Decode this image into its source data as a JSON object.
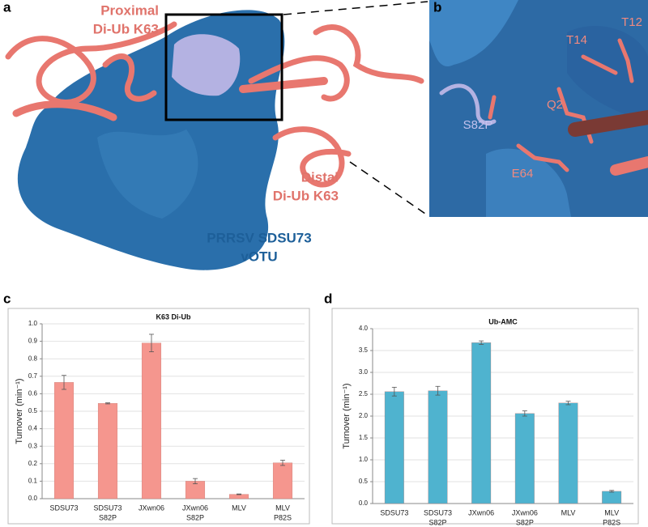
{
  "figure": {
    "panel_a": {
      "letter": "a",
      "proximal": [
        "Proximal",
        "Di-Ub K63"
      ],
      "distal": [
        "Distal",
        "Di-Ub K63"
      ],
      "protein": [
        "PRRSV SDSU73",
        "vOTU"
      ]
    },
    "panel_b": {
      "letter": "b",
      "residues": [
        "T12",
        "T14",
        "Q2",
        "S82P",
        "E64"
      ]
    },
    "panel_c": {
      "letter": "c"
    },
    "panel_d": {
      "letter": "d"
    }
  },
  "chart_data": [
    {
      "type": "bar",
      "title": "K63 Di-Ub",
      "y_label": "Turnover (min⁻¹)",
      "categories": [
        [
          "SDSU73"
        ],
        [
          "SDSU73",
          "S82P"
        ],
        [
          "JXwn06"
        ],
        [
          "JXwn06",
          "S82P"
        ],
        [
          "MLV"
        ],
        [
          "MLV",
          "P82S"
        ]
      ],
      "values": [
        0.665,
        0.545,
        0.89,
        0.1,
        0.025,
        0.205
      ],
      "errors": [
        0.04,
        0.003,
        0.05,
        0.015,
        0.002,
        0.015
      ],
      "color": "#f5968e",
      "grid": true,
      "ylim": [
        0,
        1
      ],
      "yticks": [
        {
          "value": 0,
          "label": "0.0"
        },
        0.1,
        0.2,
        0.3,
        0.4,
        0.5,
        0.6,
        0.7,
        0.8,
        0.9,
        {
          "value": 1,
          "label": "1.0"
        }
      ]
    },
    {
      "type": "bar",
      "title": "Ub-AMC",
      "y_label": "Turnover (min⁻¹)",
      "categories": [
        [
          "SDSU73"
        ],
        [
          "SDSU73",
          "S82P"
        ],
        [
          "JXwn06"
        ],
        [
          "JXwn06",
          "S82P"
        ],
        [
          "MLV"
        ],
        [
          "MLV",
          "P82S"
        ]
      ],
      "values": [
        2.56,
        2.58,
        3.68,
        2.06,
        2.3,
        0.28
      ],
      "errors": [
        0.1,
        0.1,
        0.04,
        0.06,
        0.04,
        0.02
      ],
      "color": "#4fb3cf",
      "grid": true,
      "ylim": [
        0,
        4
      ],
      "yticks": [
        {
          "value": 0,
          "label": "0.0"
        },
        0.5,
        {
          "value": 1,
          "label": "1.0"
        },
        1.5,
        {
          "value": 2,
          "label": "2.0"
        },
        2.5,
        {
          "value": 3,
          "label": "3.0"
        },
        3.5,
        {
          "value": 4,
          "label": "4.0"
        }
      ]
    }
  ]
}
